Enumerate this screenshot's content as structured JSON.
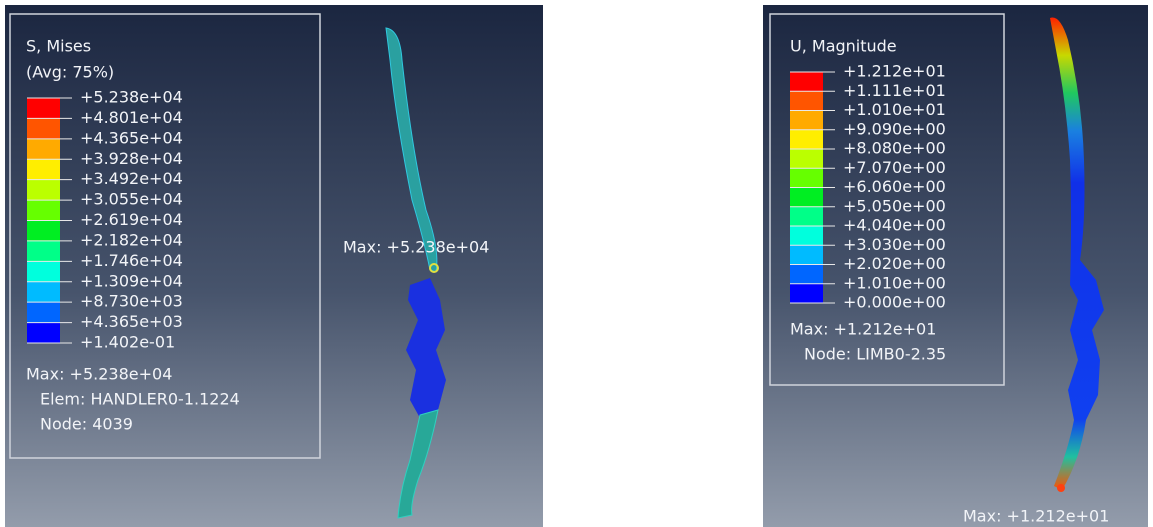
{
  "panels": [
    {
      "legend": {
        "title": "S, Mises",
        "subtitle": "(Avg: 75%)",
        "labels": [
          "+5.238e+04",
          "+4.801e+04",
          "+4.365e+04",
          "+3.928e+04",
          "+3.492e+04",
          "+3.055e+04",
          "+2.619e+04",
          "+2.182e+04",
          "+1.746e+04",
          "+1.309e+04",
          "+8.730e+03",
          "+4.365e+03",
          "+1.402e-01"
        ]
      },
      "info": [
        "Max: +5.238e+04",
        "Elem: HANDLER0-1.1224",
        "Node: 4039"
      ],
      "annotation": "Max: +5.238e+04"
    },
    {
      "legend": {
        "title": "U, Magnitude",
        "labels": [
          "+1.212e+01",
          "+1.111e+01",
          "+1.010e+01",
          "+9.090e+00",
          "+8.080e+00",
          "+7.070e+00",
          "+6.060e+00",
          "+5.050e+00",
          "+4.040e+00",
          "+3.030e+00",
          "+2.020e+00",
          "+1.010e+00",
          "+0.000e+00"
        ]
      },
      "info": [
        "Max: +1.212e+01",
        "Node: LIMB0-2.35"
      ],
      "annotation": "Max: +1.212e+01"
    }
  ]
}
